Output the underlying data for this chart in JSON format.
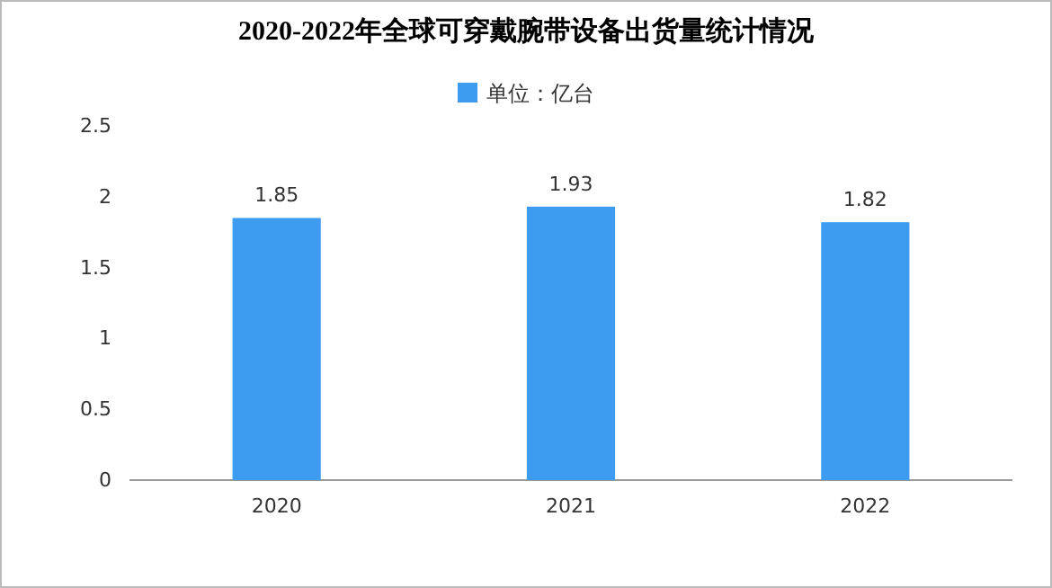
{
  "chart_data": {
    "type": "bar",
    "title": "2020-2022年全球可穿戴腕带设备出货量统计情况",
    "categories": [
      "2020",
      "2021",
      "2022"
    ],
    "series": [
      {
        "name": "单位：亿台",
        "color": "#3d9cf0",
        "values": [
          1.85,
          1.93,
          1.82
        ]
      }
    ],
    "ylim": [
      0,
      2.5
    ],
    "yticks": [
      0,
      0.5,
      1,
      1.5,
      2,
      2.5
    ],
    "data_labels": true,
    "legend": "top",
    "grid": false
  }
}
